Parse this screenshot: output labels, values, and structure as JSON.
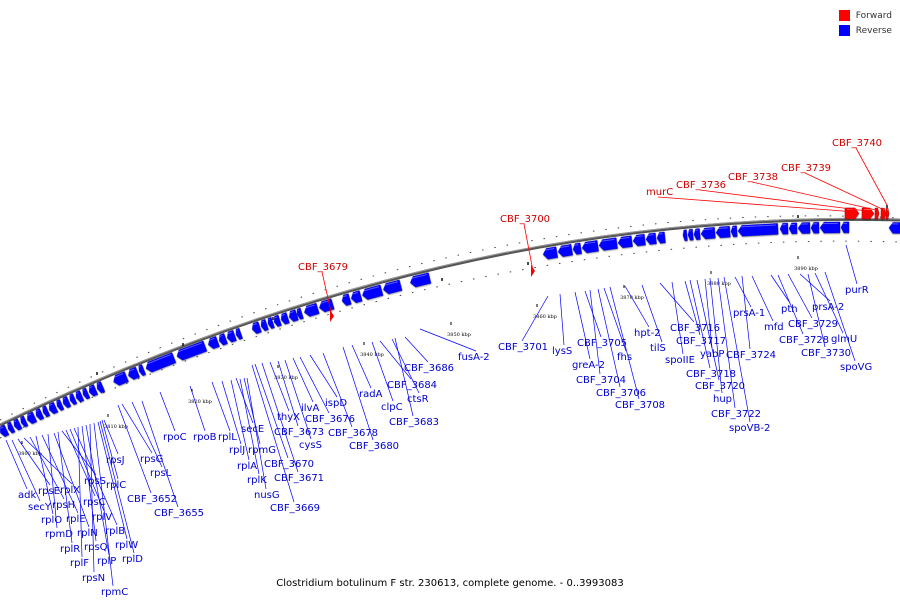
{
  "legend": {
    "forward": {
      "label": "Forward",
      "color": "#ff0000"
    },
    "reverse": {
      "label": "Reverse",
      "color": "#0000ff"
    }
  },
  "caption": "Clostridium botulinum F str. 230613, complete genome. - 0..3993083",
  "ticks": [
    "3800 kbp",
    "3810 kbp",
    "3820 kbp",
    "3830 kbp",
    "3840 kbp",
    "3850 kbp",
    "3860 kbp",
    "3870 kbp",
    "3880 kbp",
    "3890 kbp"
  ],
  "forward_genes": [
    "CBF_3679",
    "CBF_3700",
    "murC",
    "CBF_3736",
    "CBF_3738",
    "CBF_3739",
    "CBF_3740"
  ],
  "reverse_genes": [
    "adk",
    "secY",
    "rpsE",
    "rplX",
    "rpsH",
    "rplO",
    "rplE",
    "rpmD",
    "rplN",
    "rplR",
    "rpsS",
    "rpsC",
    "rplV",
    "rplB",
    "rplF",
    "rpsQ",
    "rplP",
    "rpsN",
    "rpmC",
    "rplW",
    "rplD",
    "rplC",
    "rpsJ",
    "rpsG",
    "rpsL",
    "CBF_3652",
    "CBF_3655",
    "rpoC",
    "rpoB",
    "rplL",
    "rplJ",
    "rplA",
    "rplK",
    "nusG",
    "secE",
    "rpmG",
    "CBF_3670",
    "CBF_3671",
    "CBF_3669",
    "thyX",
    "CBF_3673",
    "cysS",
    "ilvA",
    "CBF_3676",
    "ispD",
    "CBF_3678",
    "radA",
    "CBF_3680",
    "clpC",
    "CBF_3684",
    "ctsR",
    "CBF_3683",
    "CBF_3686",
    "fusA-2",
    "CBF_3701",
    "lysS",
    "greA-2",
    "CBF_3705",
    "CBF_3704",
    "CBF_3706",
    "fhs",
    "CBF_3708",
    "hpt-2",
    "tilS",
    "CBF_3716",
    "spoIIE",
    "CBF_3717",
    "CBF_3718",
    "CBF_3720",
    "yabP",
    "hup",
    "CBF_3722",
    "spoVB-2",
    "prsA-1",
    "CBF_3724",
    "mfd",
    "pth",
    "CBF_3728",
    "CBF_3729",
    "prsA-2",
    "glmU",
    "CBF_3730",
    "spoVG",
    "purR"
  ]
}
